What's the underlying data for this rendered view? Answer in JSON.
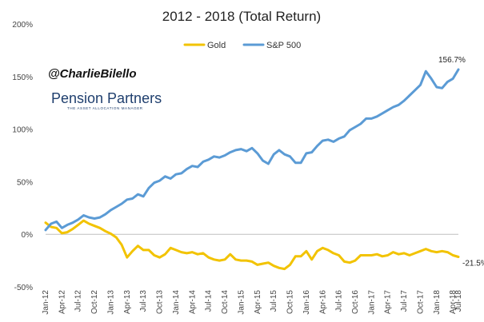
{
  "chart_data": {
    "type": "line",
    "title": "2012 - 2018 (Total Return)",
    "xlabel": "",
    "ylabel": "",
    "ylim": [
      -50,
      200
    ],
    "yticks": [
      -50,
      0,
      50,
      100,
      150,
      200
    ],
    "ytick_labels": [
      "-50%",
      "0%",
      "50%",
      "100%",
      "150%",
      "200%"
    ],
    "grid": false,
    "legend_position": "top-center",
    "x_tick_labels": [
      "Jan-12",
      "Apr-12",
      "Jul-12",
      "Oct-12",
      "Jan-13",
      "Apr-13",
      "Jul-13",
      "Oct-13",
      "Jan-14",
      "Apr-14",
      "Jul-14",
      "Oct-14",
      "Jan-15",
      "Apr-15",
      "Jul-15",
      "Oct-15",
      "Jan-16",
      "Apr-16",
      "Jul-16",
      "Oct-16",
      "Jan-17",
      "Apr-17",
      "Jul-17",
      "Oct-17",
      "Jan-18",
      "Apr-18",
      "Jul-18"
    ],
    "x_tick_step_months": 3,
    "series": [
      {
        "name": "Gold",
        "color": "#f2c300",
        "end_label": "-21.5%",
        "values": [
          11,
          7,
          6,
          1,
          2,
          5,
          9,
          13,
          10,
          8,
          6,
          3,
          0.5,
          -3,
          -10,
          -22,
          -16,
          -11,
          -15,
          -15,
          -20,
          -22,
          -19,
          -13,
          -15,
          -17,
          -18,
          -17,
          -19,
          -18,
          -22,
          -24,
          -25,
          -24,
          -19,
          -24,
          -25,
          -25,
          -26,
          -29,
          -28,
          -27,
          -30,
          -32,
          -33,
          -29,
          -21,
          -21,
          -16,
          -24,
          -16,
          -13,
          -15,
          -18,
          -20,
          -26,
          -27,
          -25,
          -20,
          -20,
          -20,
          -19,
          -21,
          -20,
          -17,
          -19,
          -18,
          -20,
          -18,
          -16,
          -14,
          -16,
          -17,
          -16,
          -17,
          -20,
          -21.5
        ]
      },
      {
        "name": "S&P 500",
        "color": "#5b9bd5",
        "end_label": "156.7%",
        "values": [
          4,
          10,
          12,
          6,
          9,
          11,
          14,
          18,
          16,
          15,
          16,
          19,
          23,
          26,
          29,
          33,
          34,
          38,
          36,
          44,
          49,
          51,
          55,
          53,
          57,
          58,
          62,
          65,
          64,
          69,
          71,
          74,
          73,
          75,
          78,
          80,
          81,
          79,
          82,
          77,
          70,
          67,
          76,
          80,
          76,
          74,
          68,
          68,
          77,
          78,
          84,
          89,
          90,
          88,
          91,
          93,
          99,
          102,
          105,
          110,
          110,
          112,
          115,
          118,
          121,
          123,
          127,
          132,
          137,
          142,
          155,
          148,
          140,
          139,
          145,
          148,
          156.7
        ]
      }
    ],
    "annotations": [
      "@CharlieBilello"
    ]
  },
  "branding": {
    "name": "Pension Partners",
    "tagline": "THE ASSET ALLOCATION MANAGER"
  }
}
